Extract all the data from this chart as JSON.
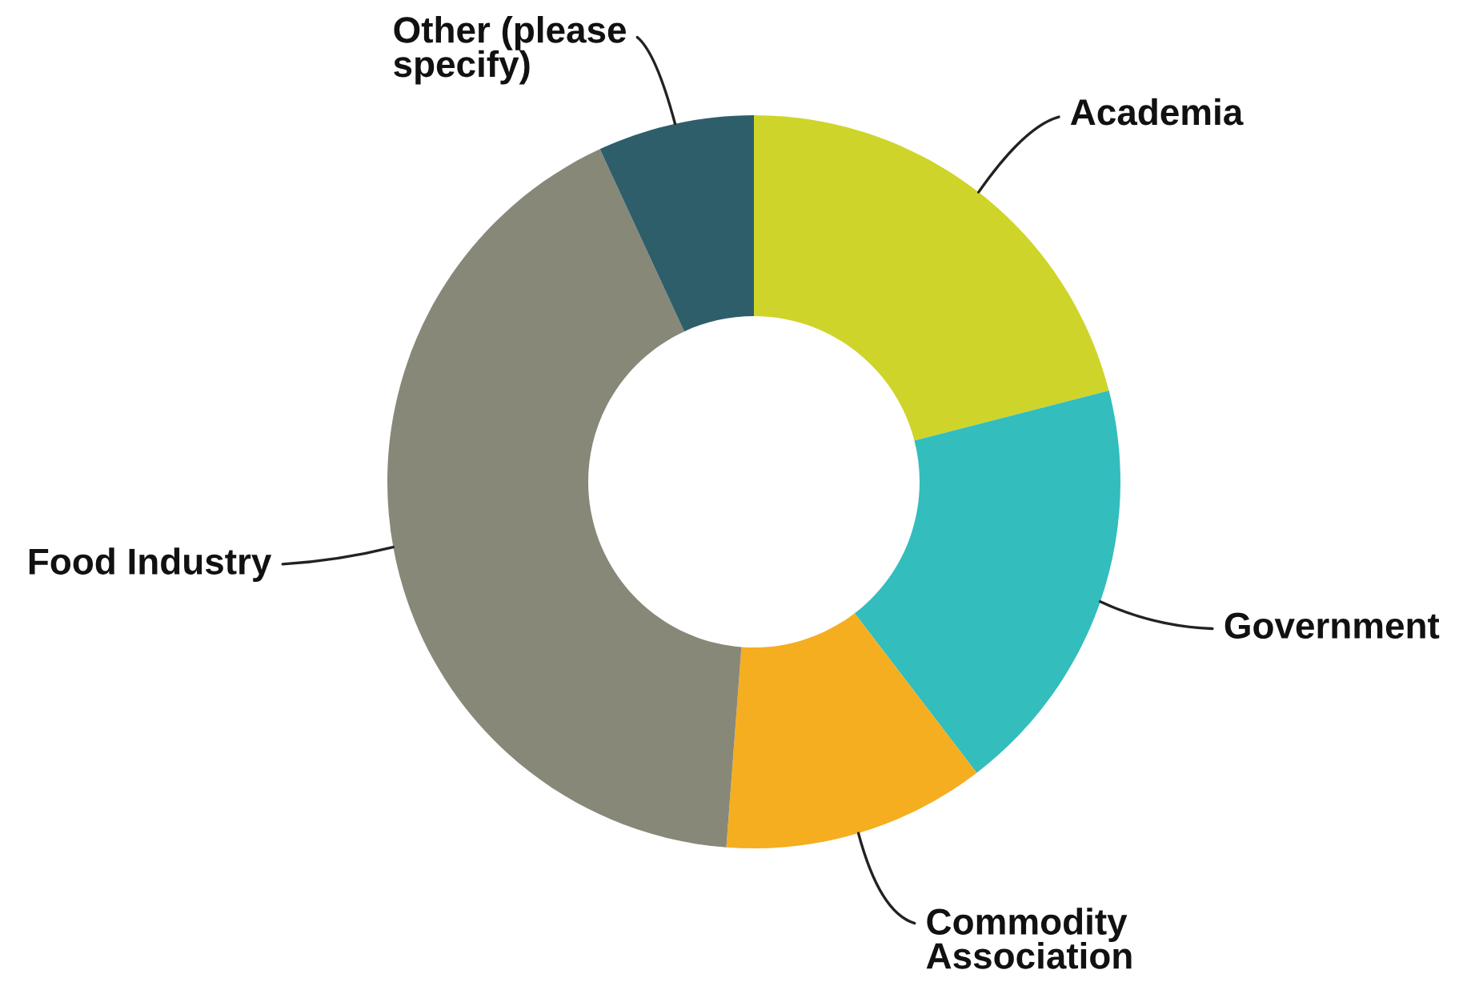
{
  "chart_data": {
    "type": "donut",
    "categories": [
      "Academia",
      "Government",
      "Commodity Association",
      "Food Industry",
      "Other (please specify)"
    ],
    "values": [
      21,
      18.6,
      11.6,
      41.9,
      6.9
    ],
    "colors": [
      "#cfd42a",
      "#33bdbd",
      "#f5ae20",
      "#878878",
      "#2e5e6a"
    ]
  }
}
